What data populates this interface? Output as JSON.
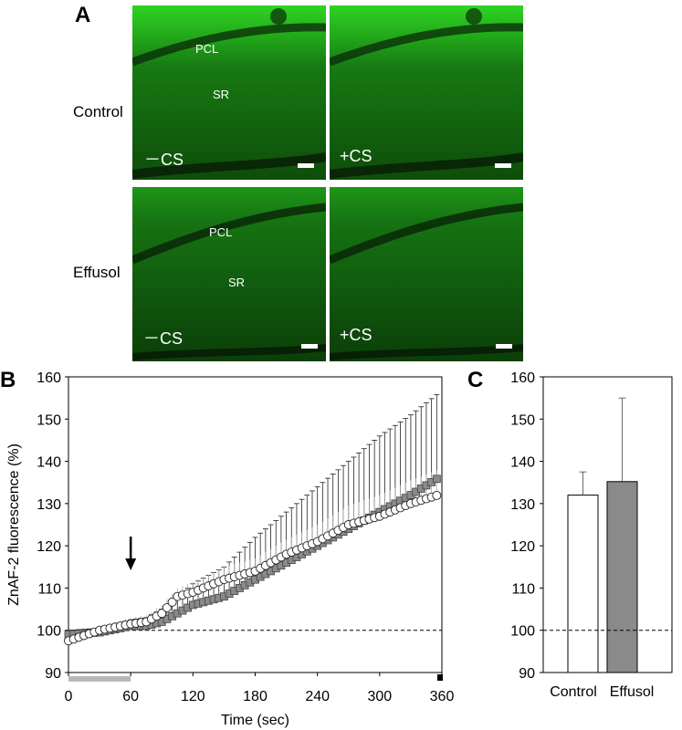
{
  "panel_a": {
    "letter": "A",
    "rows": [
      {
        "label": "Control",
        "tiles": [
          {
            "cs": "－CS",
            "layers": [
              "PCL",
              "SR"
            ]
          },
          {
            "cs": "+CS",
            "layers": []
          }
        ]
      },
      {
        "label": "Effusol",
        "tiles": [
          {
            "cs": "－CS",
            "layers": [
              "PCL",
              "SR"
            ]
          },
          {
            "cs": "+CS",
            "layers": []
          }
        ]
      }
    ]
  },
  "panel_b": {
    "letter": "B"
  },
  "panel_c": {
    "letter": "C"
  },
  "colors": {
    "fluorescence": "#1f9e1a",
    "control_fill": "#ffffff",
    "effusol_fill": "#8a8a8a",
    "baseline_bar": "#b8b8b8",
    "stim_mark": "#000000"
  },
  "chart_data": [
    {
      "type": "scatter",
      "title": "",
      "xlabel": "Time (sec)",
      "ylabel": "ZnAF-2 fluorescence (%)",
      "xlim": [
        0,
        360
      ],
      "ylim": [
        90,
        160
      ],
      "xticks": [
        0,
        60,
        120,
        180,
        240,
        300,
        360
      ],
      "yticks": [
        90,
        100,
        110,
        120,
        130,
        140,
        150,
        160
      ],
      "reference_line_y": 100,
      "stimulus_arrow_x": 60,
      "baseline_bar_x": [
        0,
        60
      ],
      "end_marker_x": 360,
      "series": [
        {
          "name": "Control",
          "marker": "open-circle",
          "x": [
            0,
            30,
            60,
            75,
            90,
            105,
            120,
            150,
            180,
            210,
            240,
            270,
            300,
            330,
            356
          ],
          "y": [
            97.5,
            100,
            101.5,
            102,
            104,
            108,
            109,
            112,
            114,
            118,
            121,
            125,
            127,
            130,
            132
          ],
          "error": [
            1,
            1,
            1.5,
            1.5,
            2,
            2,
            2.5,
            3,
            3,
            3.5,
            4,
            4.5,
            5,
            5.5,
            6
          ]
        },
        {
          "name": "Effusol",
          "marker": "grey-square",
          "x": [
            0,
            30,
            60,
            75,
            90,
            105,
            120,
            150,
            180,
            210,
            240,
            270,
            300,
            330,
            356
          ],
          "y": [
            99,
            99.5,
            101,
            101,
            102,
            104,
            106,
            108,
            112,
            116,
            120,
            124,
            128,
            132,
            136
          ],
          "error": [
            1,
            1,
            1.5,
            2,
            3,
            4,
            5,
            7,
            10,
            12,
            14,
            16,
            18,
            19,
            20
          ]
        }
      ]
    },
    {
      "type": "bar",
      "title": "",
      "ylabel": "",
      "categories": [
        "Control",
        "Effusol"
      ],
      "values": [
        132,
        135.2
      ],
      "errors": [
        5.5,
        19.8
      ],
      "ylim": [
        90,
        160
      ],
      "yticks": [
        90,
        100,
        110,
        120,
        130,
        140,
        150,
        160
      ],
      "reference_line_y": 100
    }
  ]
}
